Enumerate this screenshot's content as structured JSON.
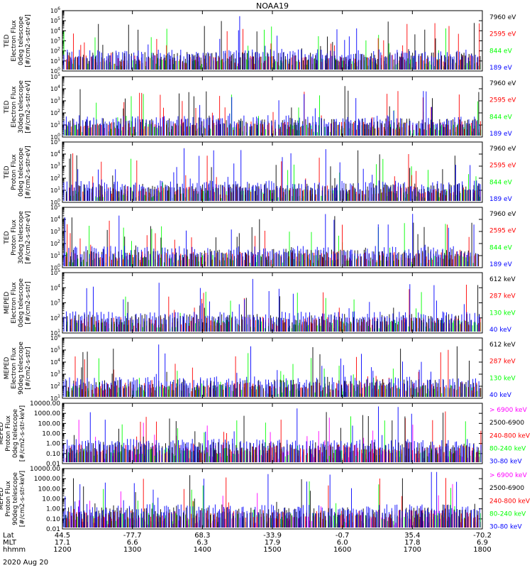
{
  "title": "NOAA19",
  "date_label": "2020 Aug 20",
  "colors": {
    "blue": "#0000ff",
    "red": "#ff0000",
    "green": "#00ff00",
    "black": "#000000",
    "magenta": "#ff00ff"
  },
  "x_axis": {
    "row_labels": [
      "Lat",
      "MLT",
      "hhmm"
    ],
    "ticks": [
      {
        "time": "1200",
        "lat": "44.5",
        "mlt": "17.1"
      },
      {
        "time": "1300",
        "lat": "-77.7",
        "mlt": "6.6"
      },
      {
        "time": "1400",
        "lat": "68.3",
        "mlt": "6.3"
      },
      {
        "time": "1500",
        "lat": "-33.9",
        "mlt": "17.9"
      },
      {
        "time": "1600",
        "lat": "-0.7",
        "mlt": "6.0"
      },
      {
        "time": "1700",
        "lat": "35.4",
        "mlt": "17.8"
      },
      {
        "time": "1800",
        "lat": "-70.2",
        "mlt": "6.9"
      }
    ]
  },
  "chart_data": [
    {
      "type": "line",
      "scale": "log",
      "ylabel": [
        "TED",
        "Electron Flux",
        "0deg telescope",
        "[#/cm2-s-str-eV]"
      ],
      "ylim": [
        1,
        1000000
      ],
      "ytick_labels": [
        "10^0",
        "10^1",
        "10^2",
        "10^3",
        "10^4",
        "10^5",
        "10^6"
      ],
      "series": [
        {
          "name": "7960 eV",
          "color": "black"
        },
        {
          "name": "2595 eV",
          "color": "red"
        },
        {
          "name": "844 eV",
          "color": "green"
        },
        {
          "name": "189 eV",
          "color": "blue"
        }
      ]
    },
    {
      "type": "line",
      "scale": "log",
      "ylabel": [
        "TED",
        "Electron Flux",
        "30deg telescope",
        "[#/cm2-s-str-eV]"
      ],
      "ylim": [
        1,
        100000
      ],
      "ytick_labels": [
        "10^0",
        "10^1",
        "10^2",
        "10^3",
        "10^4",
        "10^5"
      ],
      "series": [
        {
          "name": "7960 eV",
          "color": "black"
        },
        {
          "name": "2595 eV",
          "color": "red"
        },
        {
          "name": "844 eV",
          "color": "green"
        },
        {
          "name": "189 eV",
          "color": "blue"
        }
      ]
    },
    {
      "type": "line",
      "scale": "log",
      "ylabel": [
        "TED",
        "Proton Flux",
        "0deg telescope",
        "[#/cm2-s-str-eV]"
      ],
      "ylim": [
        1,
        100000
      ],
      "ytick_labels": [
        "10^0",
        "10^1",
        "10^2",
        "10^3",
        "10^4",
        "10^5"
      ],
      "series": [
        {
          "name": "7960 eV",
          "color": "black"
        },
        {
          "name": "2595 eV",
          "color": "red"
        },
        {
          "name": "844 eV",
          "color": "green"
        },
        {
          "name": "189 eV",
          "color": "blue"
        }
      ]
    },
    {
      "type": "line",
      "scale": "log",
      "ylabel": [
        "TED",
        "Proton Flux",
        "30deg telescope",
        "[#/cm2-s-str-eV]"
      ],
      "ylim": [
        1,
        100000
      ],
      "ytick_labels": [
        "10^0",
        "10^1",
        "10^2",
        "10^3",
        "10^4",
        "10^5"
      ],
      "series": [
        {
          "name": "7960 eV",
          "color": "black"
        },
        {
          "name": "2595 eV",
          "color": "red"
        },
        {
          "name": "844 eV",
          "color": "green"
        },
        {
          "name": "189 eV",
          "color": "blue"
        }
      ]
    },
    {
      "type": "line",
      "scale": "log",
      "ylabel": [
        "MEPED",
        "Electron Flux",
        "0deg telescope",
        "[#/cm2-s-str]"
      ],
      "ylim": [
        10,
        100000
      ],
      "ytick_labels": [
        "10^1",
        "10^2",
        "10^3",
        "10^4",
        "10^5"
      ],
      "series": [
        {
          "name": "612 keV",
          "color": "black"
        },
        {
          "name": "287 keV",
          "color": "red"
        },
        {
          "name": "130 keV",
          "color": "green"
        },
        {
          "name": "40 keV",
          "color": "blue"
        }
      ]
    },
    {
      "type": "line",
      "scale": "log",
      "ylabel": [
        "MEPED",
        "Electron Flux",
        "90deg telescope",
        "[#/cm2-s-str]"
      ],
      "ylim": [
        10,
        1000000
      ],
      "ytick_labels": [
        "10^1",
        "10^2",
        "10^3",
        "10^4",
        "10^5",
        "10^6"
      ],
      "series": [
        {
          "name": "612 keV",
          "color": "black"
        },
        {
          "name": "287 keV",
          "color": "red"
        },
        {
          "name": "130 keV",
          "color": "green"
        },
        {
          "name": "40 keV",
          "color": "blue"
        }
      ]
    },
    {
      "type": "line",
      "scale": "log",
      "ylabel": [
        "MEPED",
        "Proton Flux",
        "0deg telescope",
        "[#/cm2-s-str-keV]"
      ],
      "ylim": [
        0.01,
        10000
      ],
      "ytick_labels": [
        "0.01",
        "0.10",
        "1.00",
        "10.00",
        "100.00",
        "1000.00",
        "10000.00"
      ],
      "series": [
        {
          "name": "> 6900 keV",
          "color": "magenta"
        },
        {
          "name": "2500-6900",
          "color": "black"
        },
        {
          "name": "240-800 keV",
          "color": "red"
        },
        {
          "name": "80-240 keV",
          "color": "green"
        },
        {
          "name": "30-80 keV",
          "color": "blue"
        }
      ]
    },
    {
      "type": "line",
      "scale": "log",
      "ylabel": [
        "MEPED",
        "Proton Flux",
        "90deg telescope",
        "[#/cm2-s-str-keV]"
      ],
      "ylim": [
        0.01,
        10000
      ],
      "ytick_labels": [
        "0.01",
        "0.10",
        "1.00",
        "10.00",
        "100.00",
        "1000.00",
        "10000.00"
      ],
      "series": [
        {
          "name": "> 6900 keV",
          "color": "magenta"
        },
        {
          "name": "2500-6900",
          "color": "black"
        },
        {
          "name": "240-800 keV",
          "color": "red"
        },
        {
          "name": "80-240 keV",
          "color": "green"
        },
        {
          "name": "30-80 keV",
          "color": "blue"
        }
      ]
    }
  ]
}
